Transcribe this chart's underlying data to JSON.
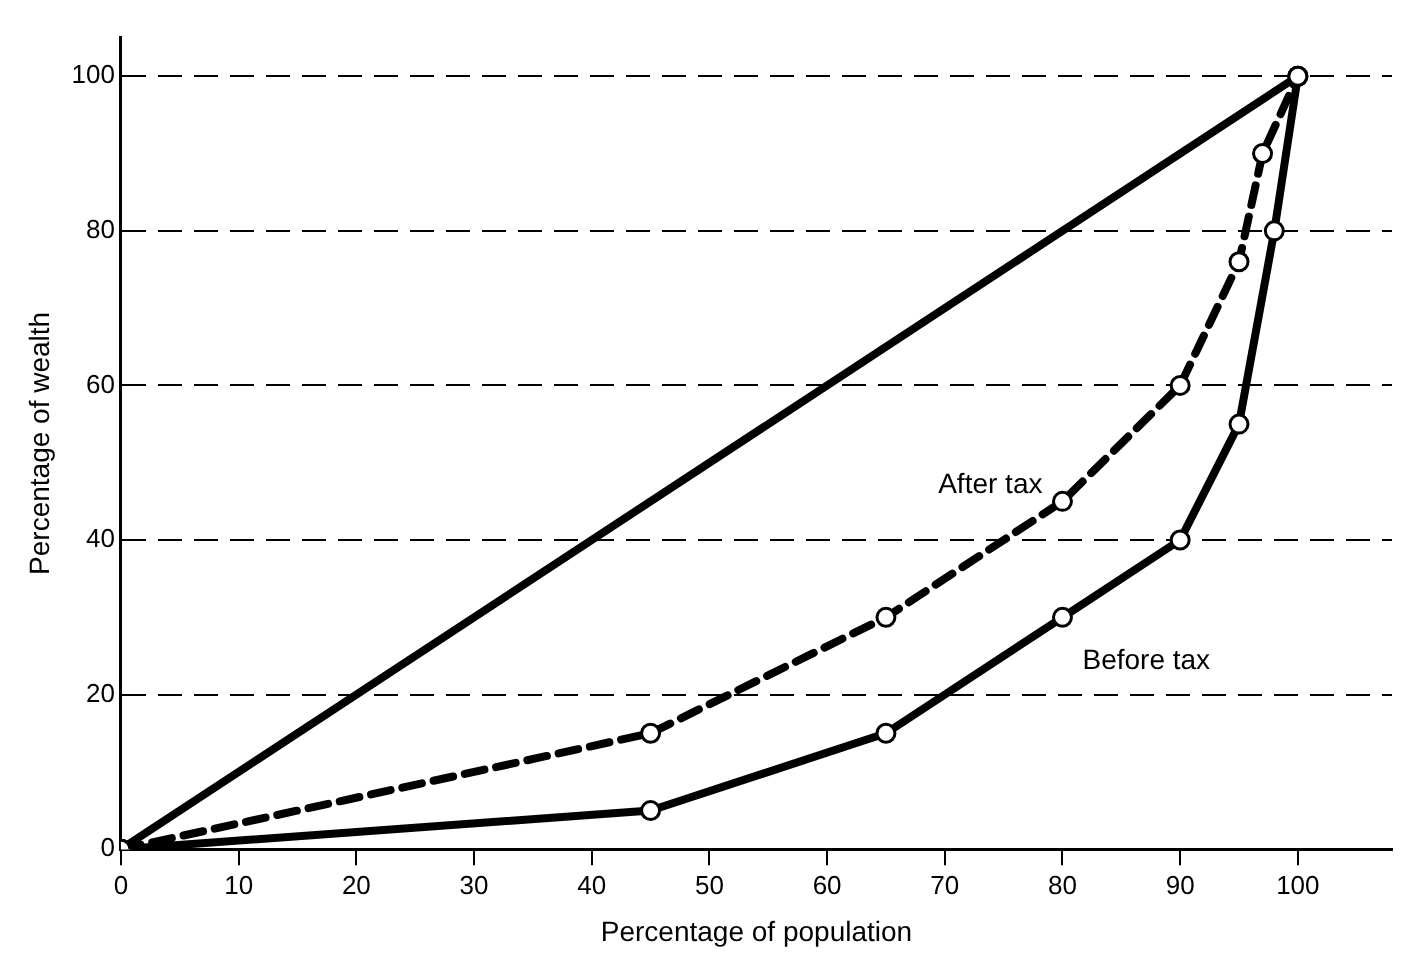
{
  "chart_data": {
    "type": "line",
    "xlabel": "Percentage of population",
    "ylabel": "Percentage of wealth",
    "xlim": [
      0,
      108
    ],
    "ylim": [
      0,
      105
    ],
    "xticks": [
      0,
      10,
      20,
      30,
      40,
      50,
      60,
      70,
      80,
      90,
      100
    ],
    "yticks": [
      0,
      20,
      40,
      60,
      80,
      100
    ],
    "grid": "y",
    "legend": false,
    "series": [
      {
        "color": "#000000",
        "x": [
          0,
          100
        ],
        "values": [
          0,
          100
        ],
        "marker": "circle",
        "line_style": "solid"
      },
      {
        "name": "After tax",
        "color": "#000000",
        "x": [
          0,
          45,
          65,
          80,
          90,
          95,
          97,
          100
        ],
        "values": [
          0,
          15,
          30,
          45,
          60,
          76,
          90,
          100
        ],
        "marker": "circle",
        "line_style": "dashed"
      },
      {
        "name": "Before tax",
        "color": "#000000",
        "x": [
          0,
          45,
          65,
          80,
          90,
          95,
          98,
          100
        ],
        "values": [
          0,
          5,
          15,
          30,
          40,
          55,
          80,
          100
        ],
        "marker": "circle",
        "line_style": "solid"
      }
    ]
  }
}
